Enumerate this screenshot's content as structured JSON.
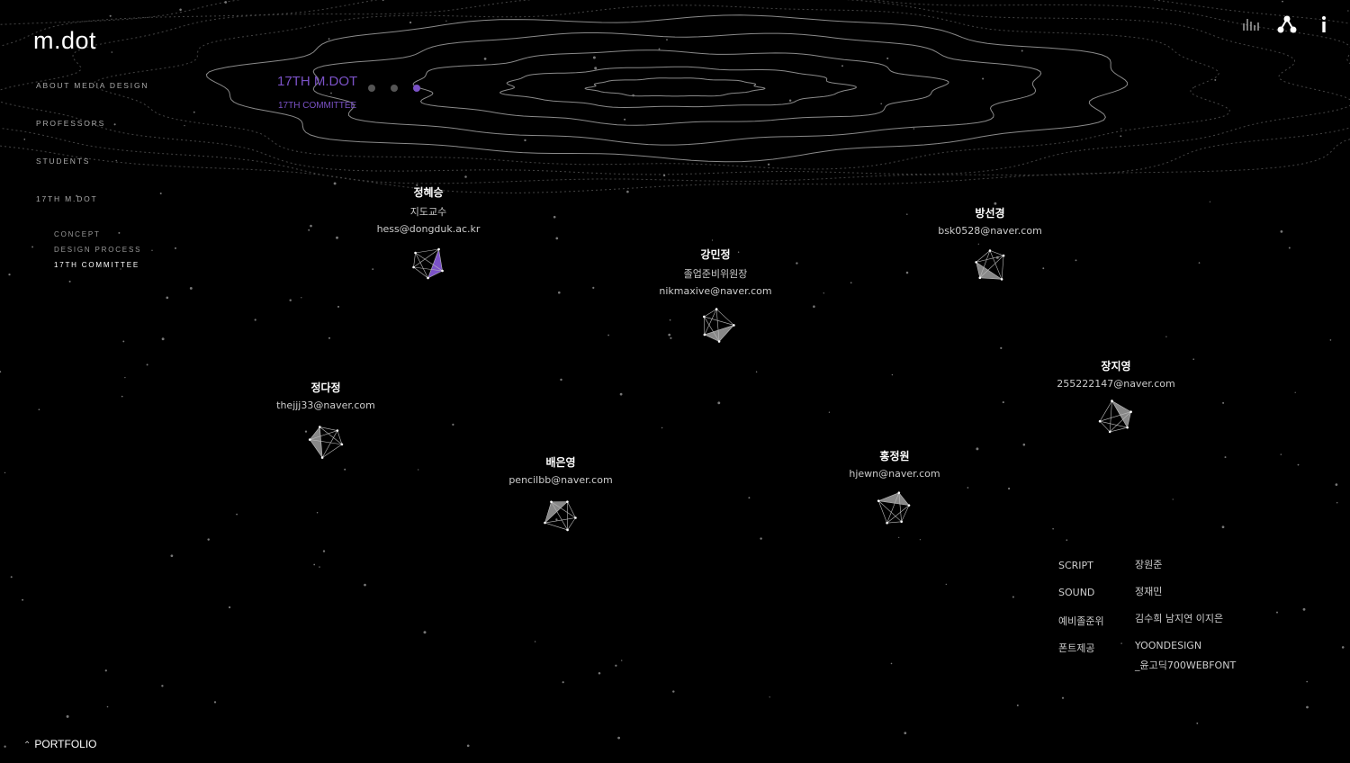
{
  "brand": {
    "logo": "m.dot"
  },
  "nav": {
    "items": [
      {
        "label": "ABOUT MEDIA DESIGN"
      },
      {
        "label": "PROFESSORS"
      },
      {
        "label": "STUDENTS"
      },
      {
        "label": "17TH M.DOT"
      }
    ],
    "sub_items": [
      {
        "label": "CONCEPT"
      },
      {
        "label": "DESIGN PROCESS"
      },
      {
        "label": "17TH COMMITTEE",
        "active": true
      }
    ]
  },
  "section": {
    "title": "17TH M.DOT",
    "subtitle": "17TH COMMITTEE",
    "pager": {
      "count": 3,
      "active_index": 3
    }
  },
  "top_icons": [
    "sound-bars-icon",
    "share-network-icon",
    "info-icon"
  ],
  "members": [
    {
      "name": "정혜승",
      "role": "지도교수",
      "email": "hess@dongduk.ac.kr",
      "highlight": true
    },
    {
      "name": "강민정",
      "role": "졸업준비위원장",
      "email": "nikmaxive@naver.com"
    },
    {
      "name": "방선경",
      "role": "",
      "email": "bsk0528@naver.com"
    },
    {
      "name": "정다정",
      "role": "",
      "email": "thejjj33@naver.com"
    },
    {
      "name": "배은영",
      "role": "",
      "email": "pencilbb@naver.com"
    },
    {
      "name": "홍정원",
      "role": "",
      "email": "hjewn@naver.com"
    },
    {
      "name": "장지영",
      "role": "",
      "email": "255222147@naver.com"
    }
  ],
  "credits": [
    {
      "key": "SCRIPT",
      "value": "장원준"
    },
    {
      "key": "SOUND",
      "value": "정재민"
    },
    {
      "key": "예비졸준위",
      "value": "김수희 남지연 이지은"
    },
    {
      "key": "폰트제공",
      "value": "YOONDESIGN",
      "value2": "_윤고딕700WEBFONT"
    }
  ],
  "footer": {
    "portfolio_label": "PORTFOLIO"
  },
  "colors": {
    "accent": "#7b52c7",
    "background": "#000000",
    "text": "#ffffff"
  }
}
